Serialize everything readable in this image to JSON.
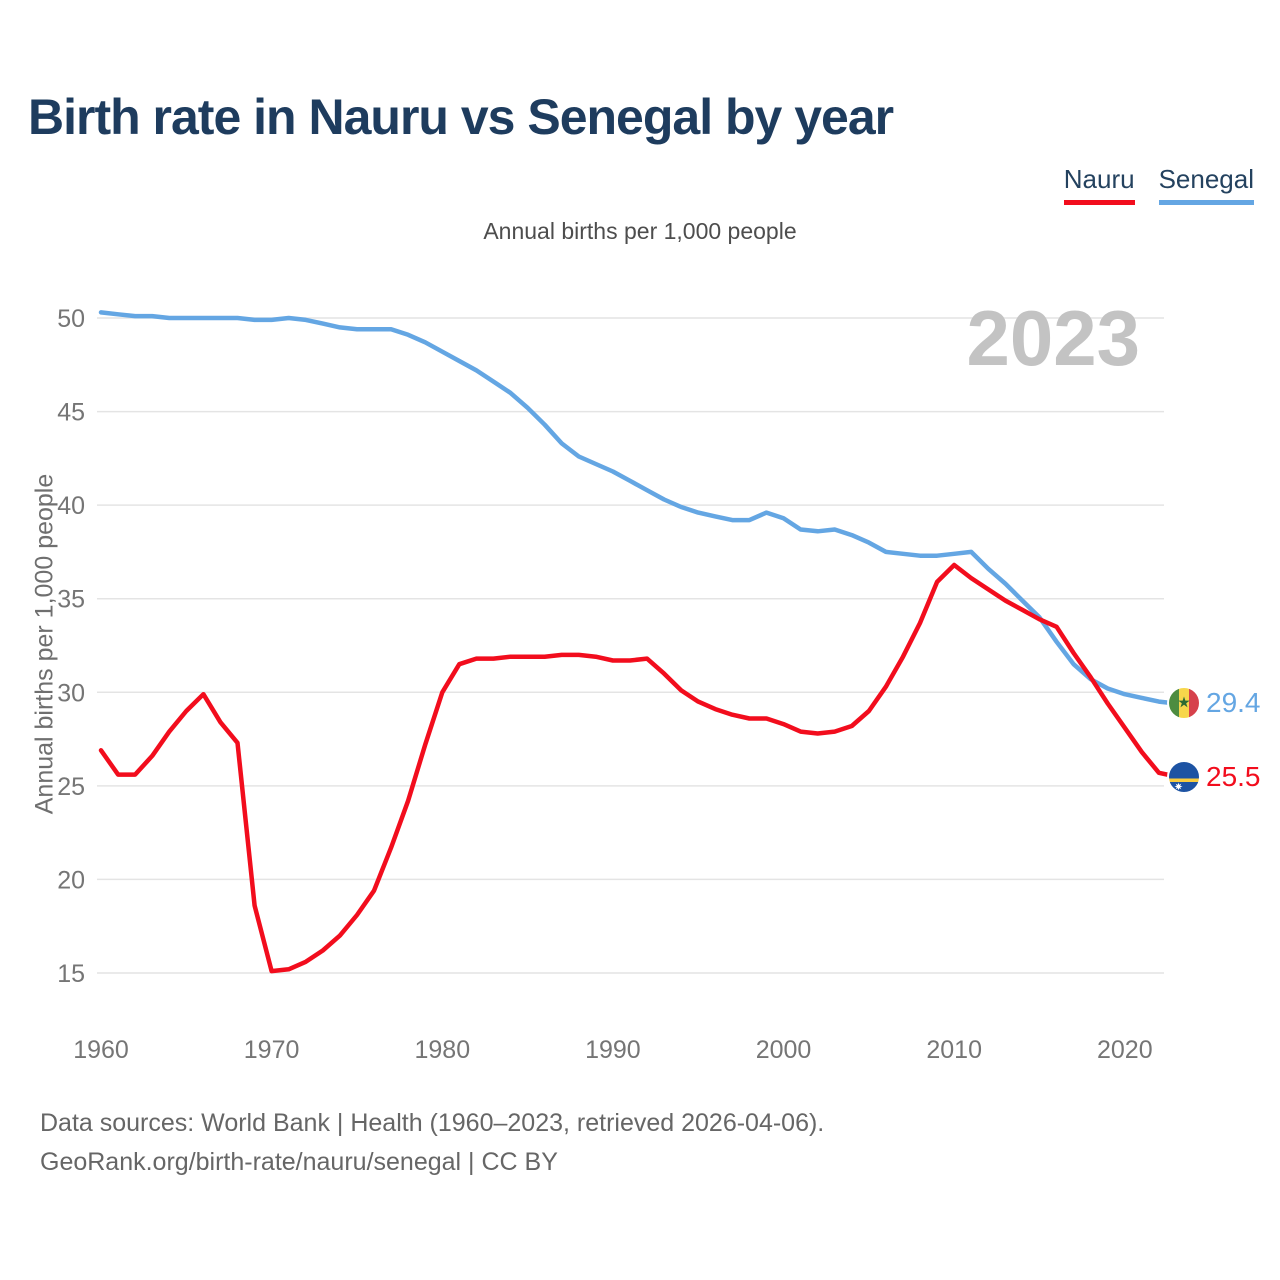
{
  "header": {
    "title": "Birth rate in Nauru vs Senegal by year"
  },
  "legend": [
    {
      "label": "Nauru",
      "color": "#f20d1d"
    },
    {
      "label": "Senegal",
      "color": "#64a6e3"
    }
  ],
  "subtitle": "Annual births per 1,000 people",
  "watermark": "2023",
  "chart_data": {
    "type": "line",
    "title": "Birth rate in Nauru vs Senegal by year",
    "xlabel": "",
    "ylabel": "Annual births per 1,000 people",
    "grid": true,
    "legend_position": "top-right",
    "ylim": [
      13,
      53
    ],
    "y_ticks": [
      15,
      20,
      25,
      30,
      35,
      40,
      45,
      50
    ],
    "x_ticks": [
      1960,
      1970,
      1980,
      1990,
      2000,
      2010,
      2020
    ],
    "x": [
      1960,
      1961,
      1962,
      1963,
      1964,
      1965,
      1966,
      1967,
      1968,
      1969,
      1970,
      1971,
      1972,
      1973,
      1974,
      1975,
      1976,
      1977,
      1978,
      1979,
      1980,
      1981,
      1982,
      1983,
      1984,
      1985,
      1986,
      1987,
      1988,
      1989,
      1990,
      1991,
      1992,
      1993,
      1994,
      1995,
      1996,
      1997,
      1998,
      1999,
      2000,
      2001,
      2002,
      2003,
      2004,
      2005,
      2006,
      2007,
      2008,
      2009,
      2010,
      2011,
      2012,
      2013,
      2014,
      2015,
      2016,
      2017,
      2018,
      2019,
      2020,
      2021,
      2022,
      2023
    ],
    "series": [
      {
        "name": "Senegal",
        "color": "#64a6e3",
        "values": [
          50.3,
          50.2,
          50.1,
          50.1,
          50.0,
          50.0,
          50.0,
          50.0,
          50.0,
          49.9,
          49.9,
          50.0,
          49.9,
          49.7,
          49.5,
          49.4,
          49.4,
          49.4,
          49.1,
          48.7,
          48.2,
          47.7,
          47.2,
          46.6,
          46.0,
          45.2,
          44.3,
          43.3,
          42.6,
          42.2,
          41.8,
          41.3,
          40.8,
          40.3,
          39.9,
          39.6,
          39.4,
          39.2,
          39.2,
          39.6,
          39.3,
          38.7,
          38.6,
          38.7,
          38.4,
          38.0,
          37.5,
          37.4,
          37.3,
          37.3,
          37.4,
          37.5,
          36.6,
          35.8,
          34.9,
          34.0,
          32.7,
          31.5,
          30.7,
          30.2,
          29.9,
          29.7,
          29.5,
          29.4
        ]
      },
      {
        "name": "Nauru",
        "color": "#f20d1d",
        "values": [
          26.9,
          25.6,
          25.6,
          26.6,
          27.9,
          29.0,
          29.9,
          28.4,
          27.3,
          18.6,
          15.1,
          15.2,
          15.6,
          16.2,
          17.0,
          18.1,
          19.4,
          21.7,
          24.2,
          27.2,
          30.0,
          31.5,
          31.8,
          31.8,
          31.9,
          31.9,
          31.9,
          32.0,
          32.0,
          31.9,
          31.7,
          31.7,
          31.8,
          31.0,
          30.1,
          29.5,
          29.1,
          28.8,
          28.6,
          28.6,
          28.3,
          27.9,
          27.8,
          27.9,
          28.2,
          29.0,
          30.3,
          31.9,
          33.7,
          35.9,
          36.8,
          36.1,
          35.5,
          34.9,
          34.4,
          33.9,
          33.5,
          32.1,
          30.8,
          29.4,
          28.1,
          26.8,
          25.7,
          25.5
        ]
      }
    ]
  },
  "end_labels": [
    {
      "series": "Senegal",
      "value": "29.4",
      "color": "#64a6e3",
      "flag": "senegal-flag-icon"
    },
    {
      "series": "Nauru",
      "value": "25.5",
      "color": "#f20d1d",
      "flag": "nauru-flag-icon"
    }
  ],
  "footer": {
    "line1": "Data sources: World Bank | Health (1960–2023, retrieved 2026-04-06).",
    "line2": "GeoRank.org/birth-rate/nauru/senegal | CC BY"
  },
  "colors": {
    "title": "#1e3c5e",
    "axis_text": "#757575",
    "gridline": "#e4e4e4",
    "subtitle_text": "#4d4d4d",
    "footer_text": "#666666",
    "watermark_text": "#c3c3c3"
  }
}
